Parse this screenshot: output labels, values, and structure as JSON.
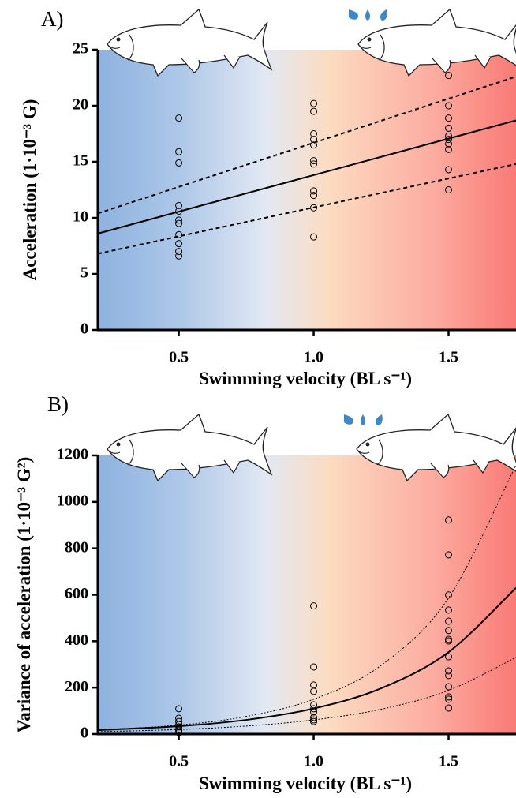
{
  "chart_data": [
    {
      "type": "scatter",
      "label": "A)",
      "x_label": "Swimming velocity (BL s⁻¹)",
      "y_label": "Acceleration (1·10⁻³ G)",
      "xlim": [
        0.2,
        1.75
      ],
      "xticks": [
        0.5,
        {
          "value": 1,
          "label": "1.0"
        },
        1.5
      ],
      "ylim": [
        0,
        25
      ],
      "yticks": [
        0,
        5,
        10,
        15,
        20,
        25
      ],
      "series": [
        {
          "type": "scatter",
          "color": "#000000",
          "x": [
            0.5,
            0.5,
            0.5,
            0.5,
            0.5,
            0.5,
            0.5,
            0.5,
            0.5,
            0.5,
            0.5,
            1,
            1,
            1,
            1,
            1,
            1,
            1,
            1,
            1,
            1,
            1,
            1.5,
            1.5,
            1.5,
            1.5,
            1.5,
            1.5,
            1.5,
            1.5,
            1.5,
            1.5
          ],
          "values": [
            18.9,
            15.9,
            14.9,
            11.1,
            10.6,
            9.8,
            9.5,
            8.5,
            7.7,
            7.0,
            6.6,
            20.2,
            19.5,
            17.5,
            17.0,
            16.5,
            15.1,
            14.8,
            12.4,
            12.0,
            10.9,
            8.3,
            22.7,
            20.0,
            18.9,
            18.0,
            17.3,
            17.0,
            16.6,
            16.1,
            14.3,
            12.5
          ]
        },
        {
          "type": "line",
          "style": "solid",
          "color": "#000000",
          "x": [
            0.2,
            1.75
          ],
          "values": [
            8.6,
            18.7
          ]
        },
        {
          "type": "line",
          "style": "dashed",
          "color": "#000000",
          "x": [
            0.2,
            1.75
          ],
          "values": [
            10.4,
            22.6
          ]
        },
        {
          "type": "line",
          "style": "dashed",
          "color": "#000000",
          "x": [
            0.2,
            1.75
          ],
          "values": [
            6.8,
            14.8
          ]
        }
      ]
    },
    {
      "type": "scatter",
      "label": "B)",
      "x_label": "Swimming velocity (BL s⁻¹)",
      "y_label": "Variance of acceleration (1·10⁻³ G²)",
      "xlim": [
        0.2,
        1.75
      ],
      "xticks": [
        0.5,
        {
          "value": 1,
          "label": "1.0"
        },
        1.5
      ],
      "ylim": [
        0,
        1200
      ],
      "yticks": [
        0,
        200,
        400,
        600,
        800,
        1000,
        1200
      ],
      "series": [
        {
          "type": "scatter",
          "color": "#000000",
          "x": [
            0.5,
            0.5,
            0.5,
            0.5,
            0.5,
            0.5,
            0.5,
            0.5,
            1,
            1,
            1,
            1,
            1,
            1,
            1,
            1,
            1,
            1,
            1.5,
            1.5,
            1.5,
            1.5,
            1.5,
            1.5,
            1.5,
            1.5,
            1.5,
            1.5,
            1.5,
            1.5,
            1.5,
            1.5,
            1.5
          ],
          "values": [
            109,
            68,
            54,
            41,
            31,
            20,
            14,
            7,
            552,
            289,
            211,
            184,
            126,
            109,
            95,
            71,
            61,
            54,
            922,
            772,
            599,
            534,
            486,
            446,
            408,
            401,
            333,
            272,
            252,
            204,
            160,
            150,
            112
          ]
        },
        {
          "type": "line",
          "style": "solid",
          "color": "#000000",
          "x": [
            0.2,
            0.5,
            0.75,
            1,
            1.25,
            1.5,
            1.75
          ],
          "values": [
            17,
            34,
            61,
            110,
            197,
            353,
            630
          ]
        },
        {
          "type": "line",
          "style": "dotted",
          "color": "#000000",
          "x": [
            0.2,
            0.5,
            0.75,
            1,
            1.25,
            1.5,
            1.75
          ],
          "values": [
            17,
            38.6,
            76,
            150,
            296,
            586,
            1158
          ]
        },
        {
          "type": "line",
          "style": "dotted",
          "color": "#000000",
          "x": [
            0.2,
            0.5,
            0.75,
            1,
            1.25,
            1.5,
            1.75
          ],
          "values": [
            10,
            19.7,
            34.6,
            61,
            107,
            188,
            330
          ]
        }
      ]
    }
  ]
}
